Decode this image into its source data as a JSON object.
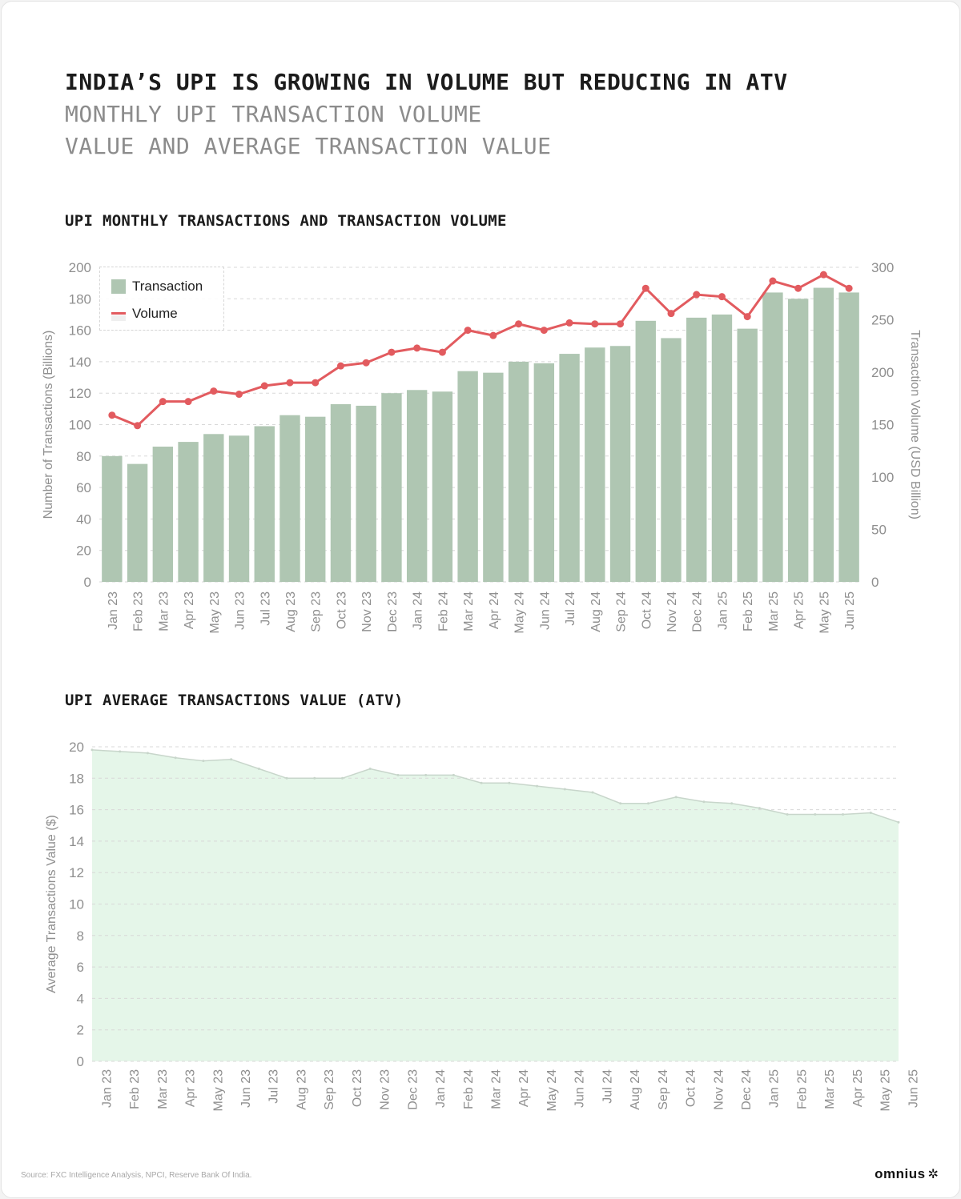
{
  "header": {
    "title": "INDIA’S UPI IS GROWING IN VOLUME BUT REDUCING IN ATV",
    "subtitle_line1": "MONTHLY UPI TRANSACTION VOLUME",
    "subtitle_line2": "VALUE AND AVERAGE TRANSACTION VALUE"
  },
  "sections": {
    "chart1_title": "UPI MONTHLY TRANSACTIONS AND TRANSACTION VOLUME",
    "chart2_title": "UPI AVERAGE TRANSACTIONS VALUE (ATV)"
  },
  "legend": {
    "bar_label": "Transaction",
    "line_label": "Volume"
  },
  "footer": {
    "source": "Source: FXC Intelligence Analysis, NPCI, Reserve Bank Of India.",
    "brand": "omnius",
    "brand_icon": "asterisk-icon"
  },
  "colors": {
    "bar": "#afc6b2",
    "line": "#e25b5f",
    "area_fill": "#e5f6e9",
    "area_stroke": "#c8d6cb",
    "grid": "#d8d8d8",
    "axis_text": "#8f8f8f"
  },
  "chart_data": [
    {
      "type": "bar",
      "title": "UPI MONTHLY TRANSACTIONS AND TRANSACTION VOLUME",
      "categories": [
        "Jan 23",
        "Feb 23",
        "Mar 23",
        "Apr 23",
        "May 23",
        "Jun 23",
        "Jul 23",
        "Aug 23",
        "Sep 23",
        "Oct 23",
        "Nov 23",
        "Dec 23",
        "Jan 24",
        "Feb 24",
        "Mar 24",
        "Apr 24",
        "May 24",
        "Jun 24",
        "Jul 24",
        "Aug 24",
        "Sep 24",
        "Oct 24",
        "Nov 24",
        "Dec 24",
        "Jan 25",
        "Feb 25",
        "Mar 25",
        "Apr 25",
        "May 25",
        "Jun 25"
      ],
      "series": [
        {
          "name": "Transaction",
          "type": "bar",
          "axis": "left",
          "values": [
            80,
            75,
            86,
            89,
            94,
            93,
            99,
            106,
            105,
            113,
            112,
            120,
            122,
            121,
            134,
            133,
            140,
            139,
            145,
            149,
            150,
            166,
            155,
            168,
            170,
            161,
            184,
            180,
            187,
            184
          ]
        },
        {
          "name": "Volume",
          "type": "line",
          "axis": "right",
          "values": [
            159,
            149,
            172,
            172,
            182,
            179,
            187,
            190,
            190,
            206,
            209,
            219,
            223,
            219,
            240,
            235,
            246,
            240,
            247,
            246,
            246,
            280,
            256,
            274,
            272,
            253,
            287,
            280,
            293,
            280
          ]
        }
      ],
      "ylabel": "Number of Transactions (Billions)",
      "ylim": [
        0,
        200
      ],
      "yticks": [
        "0",
        "20",
        "40",
        "60",
        "80",
        "100",
        "120",
        "140",
        "160",
        "180",
        "200"
      ],
      "y2label": "Transaction Volume (USD Billion)",
      "y2ticks": [
        "0",
        "50",
        "100",
        "150",
        "200",
        "250",
        "300"
      ],
      "y2tick_values": [
        0,
        50,
        100,
        150,
        200,
        250,
        300
      ],
      "grid": true,
      "legend_position": "top-left"
    },
    {
      "type": "area",
      "title": "UPI AVERAGE TRANSACTIONS VALUE (ATV)",
      "categories": [
        "Jan 23",
        "Feb 23",
        "Mar 23",
        "Apr 23",
        "May 23",
        "Jun 23",
        "Jul 23",
        "Aug 23",
        "Sep 23",
        "Oct 23",
        "Nov 23",
        "Dec 23",
        "Jan 24",
        "Feb 24",
        "Mar 24",
        "Apr 24",
        "May 24",
        "Jun 24",
        "Jul 24",
        "Aug 24",
        "Sep 24",
        "Oct 24",
        "Nov 24",
        "Dec 24",
        "Jan 25",
        "Feb 25",
        "Mar 25",
        "Apr 25",
        "May 25",
        "Jun 25"
      ],
      "values": [
        19.8,
        19.7,
        19.6,
        19.3,
        19.1,
        19.2,
        18.6,
        18.0,
        18.0,
        18.0,
        18.6,
        18.2,
        18.2,
        18.2,
        17.7,
        17.7,
        17.5,
        17.3,
        17.1,
        16.4,
        16.4,
        16.8,
        16.5,
        16.4,
        16.1,
        15.7,
        15.7,
        15.7,
        15.8,
        15.2
      ],
      "ylabel": "Average Transactions Value ($)",
      "ylim": [
        0,
        20
      ],
      "yticks": [
        "0",
        "2",
        "4",
        "6",
        "8",
        "10",
        "12",
        "14",
        "16",
        "18",
        "20"
      ],
      "grid": true
    }
  ]
}
